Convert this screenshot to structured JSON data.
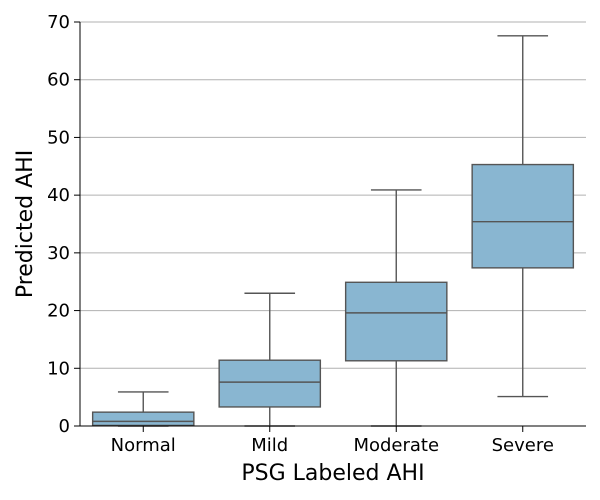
{
  "chart_data": {
    "type": "box",
    "xlabel": "PSG Labeled AHI",
    "ylabel": "Predicted AHI",
    "ylim": [
      0,
      70
    ],
    "yticks": [
      0,
      10,
      20,
      30,
      40,
      50,
      60,
      70
    ],
    "grid": "horizontal",
    "box_color": "#89b6d1",
    "line_color": "#555555",
    "categories": [
      "Normal",
      "Mild",
      "Moderate",
      "Severe"
    ],
    "boxes": [
      {
        "min": 0.0,
        "q1": 0.1,
        "median": 0.8,
        "q3": 2.4,
        "max": 5.9
      },
      {
        "min": 0.0,
        "q1": 3.3,
        "median": 7.6,
        "q3": 11.4,
        "max": 23.0
      },
      {
        "min": 0.0,
        "q1": 11.3,
        "median": 19.6,
        "q3": 24.9,
        "max": 40.9
      },
      {
        "min": 5.1,
        "q1": 27.4,
        "median": 35.4,
        "q3": 45.3,
        "max": 67.6
      }
    ]
  }
}
